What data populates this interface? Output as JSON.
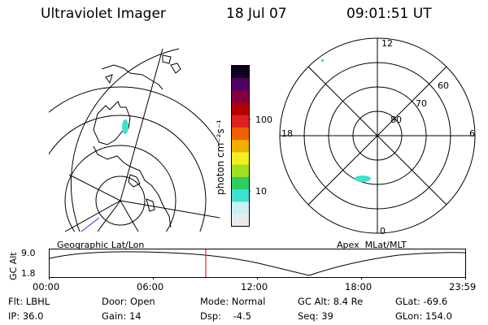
{
  "header": {
    "title": "Ultraviolet Imager",
    "date": "18 Jul 07",
    "time": "09:01:51 UT"
  },
  "colorbar": {
    "unit_label": "photon cm⁻²s⁻¹",
    "ticks": [
      "100",
      "10"
    ],
    "colors": [
      "#eaeaea",
      "#c8f2f2",
      "#40e0d0",
      "#30cc60",
      "#a0e020",
      "#f0f020",
      "#f0b000",
      "#f06000",
      "#e02020",
      "#b00000",
      "#800040",
      "#500060",
      "#100020"
    ]
  },
  "geo_panel": {
    "caption": "Geographic Lat/Lon"
  },
  "polar_panel": {
    "caption": "Apex  MLat/MLT",
    "mlt_labels": {
      "top": "12",
      "left": "18",
      "right": "6",
      "bottom": "0"
    },
    "mlat_labels": [
      "60",
      "70",
      "80"
    ]
  },
  "timeline": {
    "axis_label": "GC Alt",
    "y_ticks": [
      "9.0",
      "1.8"
    ],
    "x_ticks": [
      "00:00",
      "06:00",
      "12:00",
      "18:00",
      "23:59"
    ],
    "current_time_fraction": 0.376
  },
  "footer": {
    "filter": "Flt: LBHL",
    "door": "Door: Open",
    "mode": "Mode: Normal",
    "gc_alt": "GC Alt: 8.4 Re",
    "glat": "GLat: -69.6",
    "ip": "IP: 36.0",
    "gain": "Gain: 14",
    "dsp": "Dsp:    -4.5",
    "seq": "Seq: 39",
    "glon": "GLon: 154.0"
  }
}
